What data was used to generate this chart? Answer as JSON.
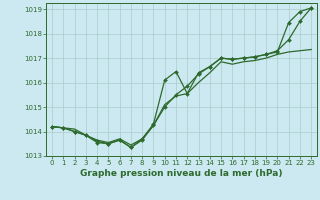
{
  "line1": {
    "x": [
      0,
      1,
      2,
      3,
      4,
      5,
      6,
      7,
      8,
      9,
      10,
      11,
      12,
      13,
      14,
      15,
      16,
      17,
      18,
      19,
      20,
      21,
      22,
      23
    ],
    "y": [
      1014.2,
      1014.15,
      1014.1,
      1013.85,
      1013.65,
      1013.55,
      1013.7,
      1013.45,
      1013.7,
      1014.25,
      1015.1,
      1015.45,
      1015.55,
      1016.0,
      1016.4,
      1016.85,
      1016.75,
      1016.85,
      1016.9,
      1017.0,
      1017.15,
      1017.25,
      1017.3,
      1017.35
    ]
  },
  "line2": {
    "x": [
      0,
      1,
      2,
      3,
      4,
      5,
      6,
      7,
      8,
      9,
      10,
      11,
      12,
      13,
      14,
      15,
      16,
      17,
      18,
      19,
      20,
      21,
      22,
      23
    ],
    "y": [
      1014.2,
      1014.15,
      1014.0,
      1013.85,
      1013.6,
      1013.5,
      1013.65,
      1013.35,
      1013.65,
      1014.25,
      1015.0,
      1015.5,
      1015.85,
      1016.35,
      1016.65,
      1017.0,
      1016.95,
      1017.0,
      1017.05,
      1017.15,
      1017.25,
      1018.45,
      1018.9,
      1019.05
    ]
  },
  "line3": {
    "x": [
      0,
      1,
      2,
      3,
      4,
      5,
      6,
      7,
      8,
      9,
      10,
      11,
      12,
      13,
      14,
      15,
      16,
      17,
      18,
      19,
      20,
      21,
      22,
      23
    ],
    "y": [
      1014.2,
      1014.15,
      1014.0,
      1013.85,
      1013.55,
      1013.5,
      1013.65,
      1013.35,
      1013.7,
      1014.3,
      1016.1,
      1016.45,
      1015.55,
      1016.4,
      1016.65,
      1017.0,
      1016.95,
      1017.0,
      1017.05,
      1017.15,
      1017.3,
      1017.75,
      1018.5,
      1019.05
    ]
  },
  "line_color": "#2d6a2d",
  "bg_color": "#cce8f0",
  "grid_color": "#aacccc",
  "xlabel": "Graphe pression niveau de la mer (hPa)",
  "ylim": [
    1013.0,
    1019.25
  ],
  "xlim": [
    -0.5,
    23.5
  ],
  "yticks": [
    1013,
    1014,
    1015,
    1016,
    1017,
    1018,
    1019
  ],
  "xticks": [
    0,
    1,
    2,
    3,
    4,
    5,
    6,
    7,
    8,
    9,
    10,
    11,
    12,
    13,
    14,
    15,
    16,
    17,
    18,
    19,
    20,
    21,
    22,
    23
  ],
  "marker": "D",
  "marker_size": 2.0,
  "line_width": 0.9,
  "tick_fontsize": 5.0,
  "xlabel_fontsize": 6.5
}
